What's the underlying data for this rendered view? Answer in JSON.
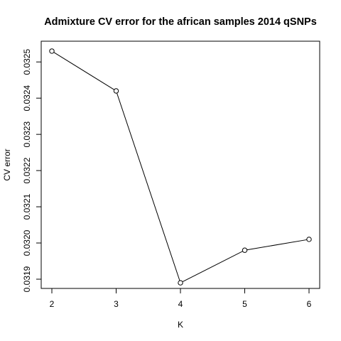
{
  "chart_data": {
    "type": "line",
    "title": "Admixture CV error for the african samples 2014 qSNPs",
    "xlabel": "K",
    "ylabel": "CV error",
    "x": [
      2,
      3,
      4,
      5,
      6
    ],
    "series": [
      {
        "values": [
          0.03253,
          0.03242,
          0.03189,
          0.03198,
          0.03201
        ]
      }
    ],
    "xticks": [
      "2",
      "3",
      "4",
      "5",
      "6"
    ],
    "yticks": [
      "0.0319",
      "0.0320",
      "0.0321",
      "0.0322",
      "0.0323",
      "0.0324",
      "0.0325"
    ],
    "xlim": [
      2,
      6
    ],
    "ylim": [
      0.0319,
      0.0325
    ],
    "markers": "open-circle",
    "grid": false,
    "legend": "none",
    "colors": {
      "line": "#000000",
      "axis": "#000000",
      "background": "#ffffff"
    }
  }
}
